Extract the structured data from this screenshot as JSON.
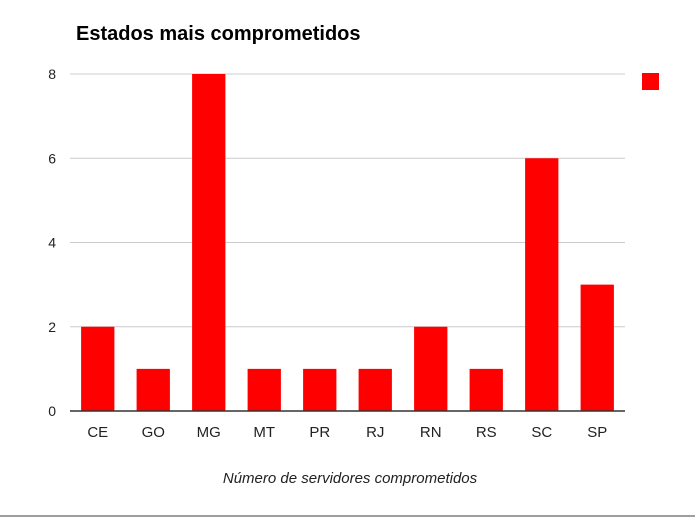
{
  "chart_data": {
    "type": "bar",
    "title": "Estados mais comprometidos",
    "xlabel": "Número de servidores comprometidos",
    "ylabel": "",
    "categories": [
      "CE",
      "GO",
      "MG",
      "MT",
      "PR",
      "RJ",
      "RN",
      "RS",
      "SC",
      "SP"
    ],
    "values": [
      2,
      1,
      8,
      1,
      1,
      1,
      2,
      1,
      6,
      3
    ],
    "ylim": [
      0,
      8
    ],
    "yticks": [
      0,
      2,
      4,
      6,
      8
    ],
    "grid": true,
    "legend": {
      "position": "right",
      "entries": [
        ""
      ]
    },
    "colors": {
      "bar": "#ff0000",
      "grid": "#cccccc",
      "axis": "#333333",
      "text": "#222222"
    }
  }
}
